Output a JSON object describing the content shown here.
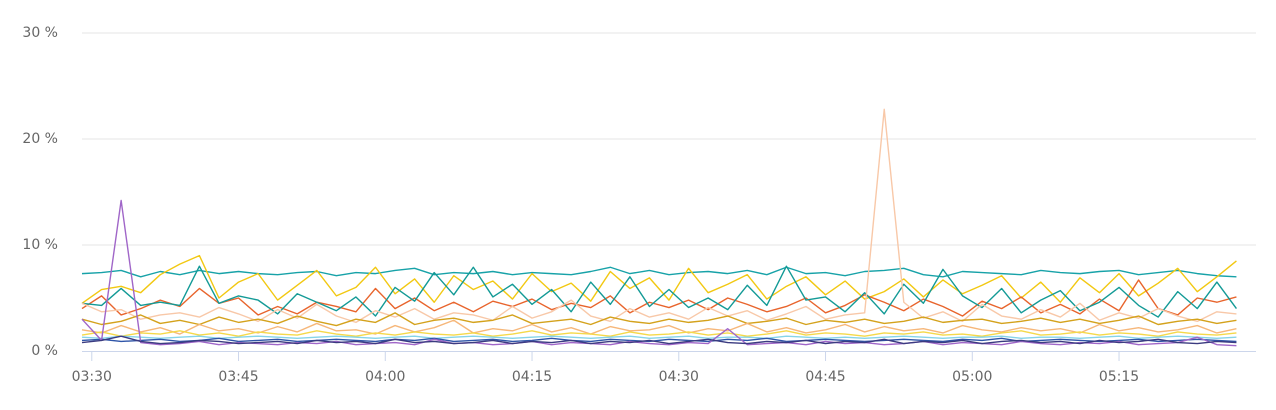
{
  "chart_data": {
    "type": "line",
    "x": [
      "03:29",
      "03:31",
      "03:33",
      "03:35",
      "03:37",
      "03:39",
      "03:41",
      "03:43",
      "03:45",
      "03:47",
      "03:49",
      "03:51",
      "03:53",
      "03:55",
      "03:57",
      "03:59",
      "04:01",
      "04:03",
      "04:05",
      "04:07",
      "04:09",
      "04:11",
      "04:13",
      "04:15",
      "04:17",
      "04:19",
      "04:21",
      "04:23",
      "04:25",
      "04:27",
      "04:29",
      "04:31",
      "04:33",
      "04:35",
      "04:37",
      "04:39",
      "04:41",
      "04:43",
      "04:45",
      "04:47",
      "04:49",
      "04:51",
      "04:53",
      "04:55",
      "04:57",
      "04:59",
      "05:01",
      "05:03",
      "05:05",
      "05:07",
      "05:09",
      "05:11",
      "05:13",
      "05:15",
      "05:17",
      "05:19",
      "05:21",
      "05:23",
      "05:25",
      "05:27"
    ],
    "xlim": [
      "03:29",
      "05:29"
    ],
    "xticks": [
      "03:30",
      "03:45",
      "04:00",
      "04:15",
      "04:30",
      "04:45",
      "05:00",
      "05:15"
    ],
    "ylim": [
      0,
      30
    ],
    "yticks": [
      {
        "value": 0,
        "label": "0 %"
      },
      {
        "value": 10,
        "label": "10 %"
      },
      {
        "value": 20,
        "label": "20 %"
      },
      {
        "value": 30,
        "label": "30 %"
      }
    ],
    "grid": true,
    "series": [
      {
        "color": "#17a2a8",
        "values": [
          7.3,
          7.4,
          7.6,
          7.0,
          7.5,
          7.2,
          7.6,
          7.3,
          7.5,
          7.3,
          7.2,
          7.4,
          7.5,
          7.1,
          7.4,
          7.3,
          7.6,
          7.8,
          7.2,
          7.4,
          7.3,
          7.5,
          7.2,
          7.4,
          7.3,
          7.2,
          7.5,
          7.9,
          7.3,
          7.6,
          7.2,
          7.4,
          7.5,
          7.3,
          7.6,
          7.2,
          7.9,
          7.3,
          7.4,
          7.1,
          7.5,
          7.6,
          7.8,
          7.2,
          7.0,
          7.5,
          7.4,
          7.3,
          7.2,
          7.6,
          7.4,
          7.3,
          7.5,
          7.6,
          7.2,
          7.4,
          7.6,
          7.3,
          7.1,
          7.0
        ]
      },
      {
        "color": "#f2c811",
        "values": [
          4.5,
          5.8,
          6.1,
          5.5,
          7.2,
          8.2,
          9.0,
          5.0,
          6.5,
          7.3,
          4.8,
          6.2,
          7.6,
          5.2,
          6.0,
          7.9,
          5.4,
          6.8,
          4.6,
          7.1,
          5.8,
          6.6,
          4.9,
          7.3,
          5.6,
          6.4,
          4.7,
          7.5,
          5.9,
          6.9,
          4.8,
          7.8,
          5.5,
          6.3,
          7.2,
          4.9,
          6.1,
          7.0,
          5.3,
          6.6,
          4.9,
          5.6,
          6.8,
          5.1,
          6.7,
          5.4,
          6.2,
          7.1,
          5.0,
          6.5,
          4.6,
          6.9,
          5.5,
          7.3,
          5.2,
          6.4,
          7.8,
          5.6,
          7.0,
          8.5
        ]
      },
      {
        "color": "#e8642c",
        "values": [
          4.0,
          5.2,
          3.4,
          4.0,
          4.8,
          4.2,
          5.9,
          4.5,
          5.0,
          3.4,
          4.2,
          3.5,
          4.6,
          4.2,
          3.7,
          5.9,
          4.0,
          5.0,
          3.8,
          4.6,
          3.7,
          4.7,
          4.2,
          4.9,
          3.9,
          4.5,
          4.1,
          5.2,
          3.6,
          4.6,
          4.1,
          4.8,
          3.9,
          5.0,
          4.4,
          3.7,
          4.2,
          5.0,
          3.6,
          4.3,
          5.3,
          4.6,
          3.8,
          4.9,
          4.2,
          3.3,
          4.7,
          4.0,
          5.1,
          3.6,
          4.4,
          3.5,
          4.9,
          3.8,
          6.7,
          4.0,
          3.4,
          5.0,
          4.6,
          5.1
        ]
      },
      {
        "color": "#139a96",
        "values": [
          4.5,
          4.3,
          5.9,
          4.3,
          4.6,
          4.3,
          8.0,
          4.5,
          5.2,
          4.8,
          3.5,
          5.4,
          4.6,
          3.8,
          5.1,
          3.3,
          6.0,
          4.7,
          7.4,
          5.3,
          7.9,
          5.1,
          6.3,
          4.4,
          5.8,
          3.7,
          6.5,
          4.4,
          7.0,
          4.2,
          5.8,
          4.1,
          5.0,
          3.9,
          6.2,
          4.3,
          8.0,
          4.8,
          5.1,
          3.7,
          5.5,
          3.5,
          6.3,
          4.5,
          7.7,
          5.2,
          4.1,
          5.9,
          3.6,
          4.8,
          5.7,
          3.8,
          4.6,
          6.0,
          4.3,
          3.2,
          5.6,
          4.0,
          6.5,
          4.0
        ]
      },
      {
        "color": "#f8c8a8",
        "values": [
          4.5,
          3.7,
          3.9,
          3.0,
          3.4,
          3.6,
          3.2,
          4.1,
          3.5,
          2.8,
          3.9,
          3.1,
          4.4,
          3.3,
          2.7,
          3.8,
          3.2,
          4.0,
          3.0,
          3.6,
          3.4,
          2.9,
          4.2,
          3.1,
          3.7,
          4.8,
          3.3,
          2.8,
          4.0,
          3.2,
          3.6,
          3.0,
          4.1,
          3.3,
          3.8,
          2.9,
          3.5,
          4.2,
          3.0,
          3.4,
          3.6,
          22.8,
          4.6,
          3.1,
          3.7,
          2.8,
          4.4,
          3.3,
          3.0,
          3.9,
          3.2,
          4.5,
          2.9,
          3.6,
          3.1,
          4.0,
          3.3,
          2.8,
          3.7,
          3.5
        ]
      },
      {
        "color": "#d4a21c",
        "values": [
          3.0,
          2.5,
          2.8,
          3.4,
          2.6,
          2.9,
          2.5,
          3.2,
          2.7,
          3.0,
          2.6,
          3.3,
          2.8,
          2.4,
          3.0,
          2.7,
          3.6,
          2.5,
          2.9,
          3.1,
          2.7,
          2.9,
          3.4,
          2.6,
          2.8,
          3.0,
          2.5,
          3.2,
          2.8,
          2.6,
          3.0,
          2.7,
          2.9,
          3.3,
          2.6,
          2.8,
          3.1,
          2.5,
          2.9,
          2.7,
          3.0,
          2.6,
          2.8,
          3.2,
          2.7,
          2.9,
          3.0,
          2.6,
          2.8,
          3.1,
          2.7,
          3.0,
          2.6,
          2.9,
          3.3,
          2.5,
          2.8,
          3.0,
          2.6,
          2.9
        ]
      },
      {
        "color": "#f6b77a",
        "values": [
          2.0,
          1.7,
          2.4,
          1.8,
          2.2,
          1.6,
          2.5,
          1.9,
          2.1,
          1.7,
          2.3,
          1.8,
          2.6,
          1.9,
          2.0,
          1.6,
          2.4,
          1.8,
          2.2,
          2.9,
          1.7,
          2.1,
          1.9,
          2.5,
          1.8,
          2.2,
          1.6,
          2.3,
          1.9,
          2.0,
          2.4,
          1.7,
          2.1,
          1.9,
          2.6,
          1.8,
          2.2,
          1.7,
          2.0,
          2.5,
          1.8,
          2.3,
          1.9,
          2.1,
          1.7,
          2.4,
          2.0,
          1.8,
          2.2,
          1.9,
          2.1,
          1.7,
          2.5,
          1.9,
          2.2,
          1.8,
          2.0,
          2.4,
          1.7,
          2.1
        ]
      },
      {
        "color": "#f5d94a",
        "values": [
          1.5,
          1.8,
          1.4,
          1.7,
          1.6,
          1.9,
          1.5,
          1.7,
          1.4,
          1.8,
          1.6,
          1.5,
          1.9,
          1.6,
          1.4,
          1.7,
          1.5,
          1.8,
          1.6,
          1.5,
          1.7,
          1.4,
          1.6,
          1.9,
          1.5,
          1.7,
          1.6,
          1.4,
          1.8,
          1.5,
          1.6,
          1.8,
          1.5,
          1.7,
          1.4,
          1.6,
          1.9,
          1.5,
          1.7,
          1.6,
          1.4,
          1.7,
          1.6,
          1.8,
          1.5,
          1.6,
          1.4,
          1.7,
          1.9,
          1.5,
          1.6,
          1.8,
          1.5,
          1.7,
          1.6,
          1.4,
          1.8,
          1.6,
          1.5,
          1.7
        ]
      },
      {
        "color": "#86d4e8",
        "values": [
          1.3,
          1.2,
          1.4,
          1.3,
          1.2,
          1.3,
          1.4,
          1.2,
          1.3,
          1.4,
          1.3,
          1.2,
          1.3,
          1.4,
          1.3,
          1.2,
          1.3,
          1.4,
          1.2,
          1.3,
          1.4,
          1.3,
          1.2,
          1.3,
          1.4,
          1.3,
          1.2,
          1.3,
          1.4,
          1.2,
          1.3,
          1.4,
          1.2,
          1.3,
          1.3,
          1.2,
          1.4,
          1.3,
          1.2,
          1.3,
          1.2,
          1.3,
          1.4,
          1.3,
          1.2,
          1.3,
          1.3,
          1.4,
          1.2,
          1.3,
          1.3,
          1.2,
          1.3,
          1.4,
          1.2,
          1.3,
          1.4,
          1.3,
          1.2,
          1.3
        ]
      },
      {
        "color": "#2f55a8",
        "values": [
          1.0,
          1.1,
          0.9,
          1.0,
          1.1,
          0.9,
          1.0,
          1.2,
          0.9,
          1.0,
          1.1,
          0.9,
          1.0,
          1.1,
          1.0,
          0.9,
          1.1,
          1.0,
          1.2,
          0.9,
          1.0,
          1.1,
          0.9,
          1.0,
          1.2,
          1.0,
          0.9,
          1.1,
          1.0,
          0.9,
          1.1,
          1.0,
          0.9,
          1.1,
          1.0,
          1.2,
          0.9,
          1.0,
          1.1,
          1.0,
          0.9,
          1.0,
          1.1,
          1.0,
          0.9,
          1.1,
          1.0,
          1.2,
          0.9,
          1.0,
          1.1,
          1.0,
          0.9,
          1.0,
          1.1,
          0.9,
          1.0,
          1.1,
          1.0,
          0.9
        ]
      },
      {
        "color": "#a066c8",
        "values": [
          3.0,
          1.0,
          14.2,
          0.8,
          0.6,
          0.7,
          0.9,
          0.6,
          0.8,
          0.7,
          0.6,
          0.8,
          0.7,
          0.9,
          0.6,
          0.7,
          0.8,
          0.6,
          1.1,
          0.7,
          0.8,
          0.6,
          0.7,
          0.9,
          0.6,
          0.8,
          0.7,
          0.6,
          0.9,
          0.7,
          0.6,
          0.8,
          0.7,
          2.1,
          0.6,
          0.7,
          0.8,
          0.6,
          0.9,
          0.7,
          0.8,
          0.6,
          0.7,
          0.9,
          0.6,
          0.8,
          0.7,
          0.6,
          0.9,
          0.7,
          0.6,
          0.8,
          0.7,
          0.9,
          0.6,
          0.7,
          0.8,
          1.3,
          0.6,
          0.5
        ]
      },
      {
        "color": "#3b3b80",
        "values": [
          0.8,
          1.0,
          1.4,
          0.9,
          0.7,
          0.8,
          1.0,
          0.9,
          0.7,
          0.8,
          0.9,
          0.7,
          1.0,
          0.8,
          0.9,
          0.7,
          1.1,
          0.8,
          0.9,
          0.7,
          0.8,
          1.0,
          0.7,
          0.9,
          0.8,
          1.0,
          0.7,
          0.9,
          0.8,
          1.0,
          0.7,
          0.9,
          1.1,
          0.8,
          0.7,
          0.9,
          0.8,
          1.0,
          0.7,
          0.9,
          0.8,
          1.1,
          0.7,
          0.9,
          0.8,
          1.0,
          0.7,
          0.9,
          1.0,
          0.8,
          0.9,
          0.7,
          1.0,
          0.8,
          0.9,
          1.1,
          0.8,
          0.7,
          0.9,
          0.8
        ]
      }
    ]
  }
}
